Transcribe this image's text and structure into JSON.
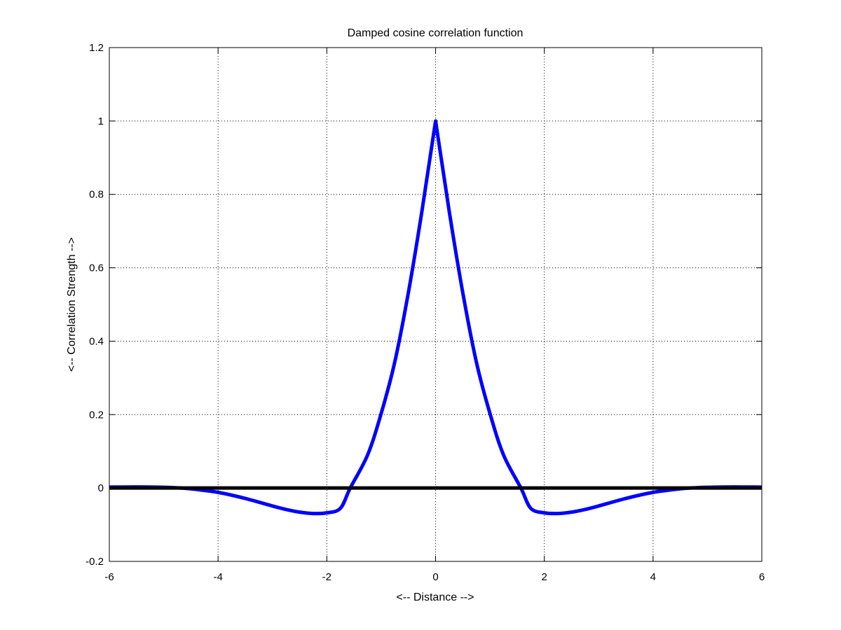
{
  "chart_data": {
    "type": "line",
    "title": "Damped cosine correlation function",
    "xlabel": "<-- Distance -->",
    "ylabel": "<-- Correlation Strength -->",
    "xlim": [
      -6,
      6
    ],
    "ylim": [
      -0.2,
      1.2
    ],
    "xticks": [
      -6,
      -4,
      -2,
      0,
      2,
      4,
      6
    ],
    "yticks": [
      -0.2,
      0,
      0.2,
      0.4,
      0.6,
      0.8,
      1,
      1.2
    ],
    "xtick_labels": [
      "-6",
      "-4",
      "-2",
      "0",
      "2",
      "4",
      "6"
    ],
    "ytick_labels": [
      "-0.2",
      "0",
      "0.2",
      "0.4",
      "0.6",
      "0.8",
      "1",
      "1.2"
    ],
    "grid": true,
    "series": [
      {
        "color": "#0000ff",
        "style": "solid",
        "x": [
          -6,
          -5.5,
          -5,
          -4.75,
          -4.5,
          -4,
          -3.5,
          -3,
          -2.75,
          -2.5,
          -2.25,
          -2,
          -1.75,
          -1.57,
          -1.25,
          -1,
          -0.75,
          -0.5,
          -0.25,
          0,
          0.25,
          0.5,
          0.75,
          1,
          1.25,
          1.57,
          1.75,
          2,
          2.25,
          2.5,
          2.75,
          3,
          3.5,
          4,
          4.5,
          4.75,
          5,
          5.5,
          6
        ],
        "y": [
          0.0024,
          0.0029,
          0.0019,
          0.0004,
          -0.0022,
          -0.0119,
          -0.0284,
          -0.049,
          -0.0585,
          -0.0658,
          -0.0695,
          -0.0677,
          -0.0552,
          -0.0002,
          0.09,
          0.2032,
          0.3435,
          0.5325,
          0.7549,
          1.0,
          0.7549,
          0.5325,
          0.3435,
          0.2032,
          0.09,
          -0.0002,
          -0.0552,
          -0.0677,
          -0.0695,
          -0.0658,
          -0.0585,
          -0.049,
          -0.0284,
          -0.0119,
          -0.0022,
          0.0004,
          0.0019,
          0.0029,
          0.0024
        ]
      },
      {
        "color": "#000000",
        "style": "solid",
        "x": [
          -6,
          6
        ],
        "y": [
          0,
          0
        ]
      }
    ]
  }
}
